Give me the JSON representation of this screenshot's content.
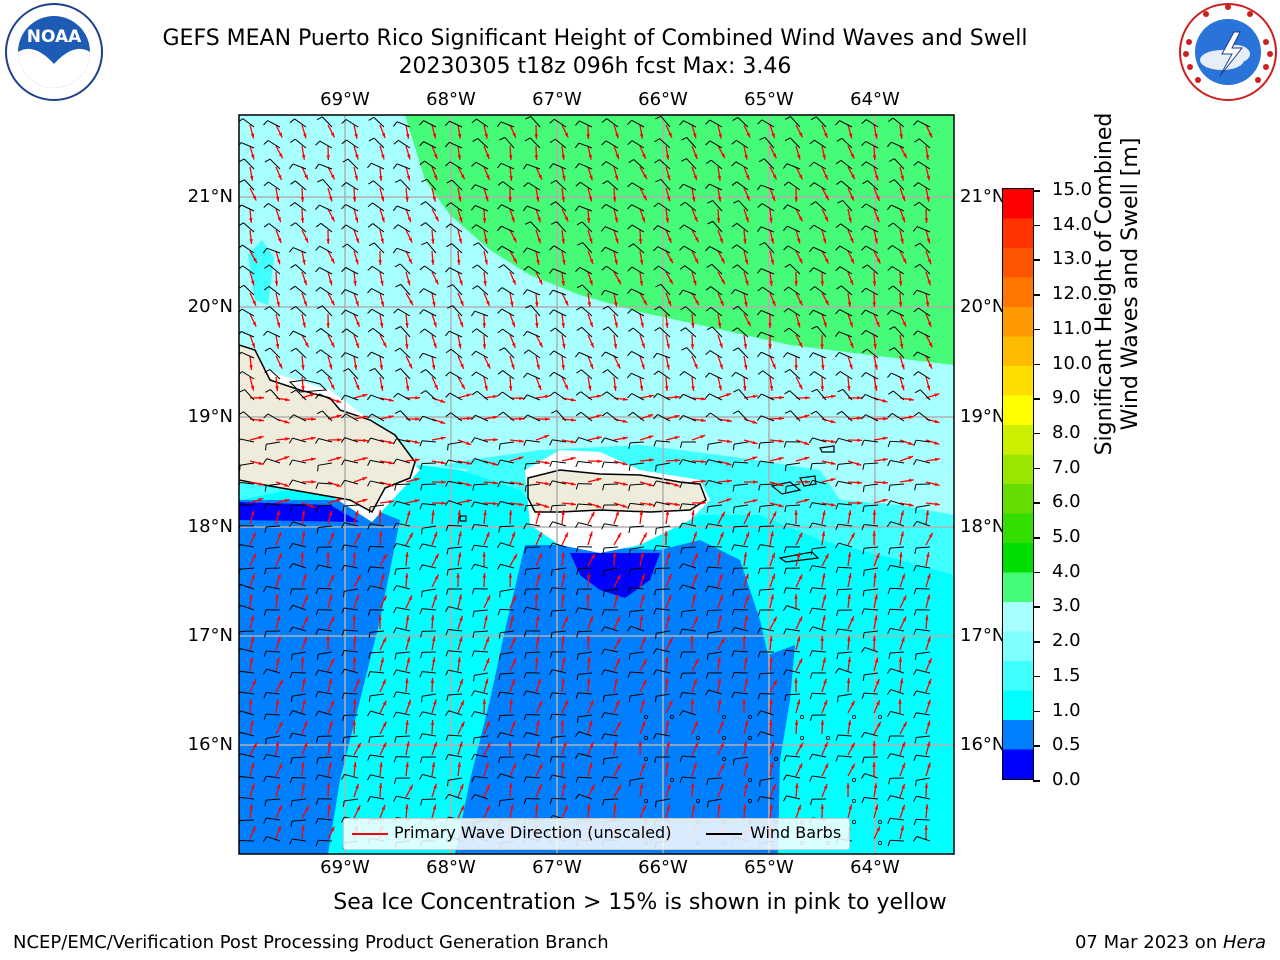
{
  "header": {
    "title_line1": "GEFS MEAN Puerto Rico Significant Height of Combined Wind Waves and Swell",
    "title_line2": "20230305 t18z 096h fcst   Max: 3.46"
  },
  "logos": {
    "left_text": "NOAA",
    "left_ring_text": "NATIONAL OCEANIC AND ATMOSPHERIC ADMINISTRATION · U.S. DEPARTMENT OF COMMERCE",
    "right_ring_text": "NATIONAL WEATHER SERVICE"
  },
  "map": {
    "lon_labels": [
      "69°W",
      "68°W",
      "67°W",
      "66°W",
      "65°W",
      "64°W"
    ],
    "lat_labels": [
      "21°N",
      "20°N",
      "19°N",
      "18°N",
      "17°N",
      "16°N"
    ],
    "legend": {
      "wave_label": "Primary Wave Direction (unscaled)",
      "barb_label": "Wind Barbs",
      "wave_color": "#ff0000",
      "barb_color": "#000000"
    },
    "land_color": "#efecdc"
  },
  "colorbar": {
    "label_line1": "Significant Height of Combined",
    "label_line2": "Wind Waves and Swell [m]",
    "ticks": [
      "15.0",
      "14.0",
      "13.0",
      "12.0",
      "11.0",
      "10.0",
      "9.0",
      "8.0",
      "7.0",
      "6.0",
      "5.0",
      "4.0",
      "3.0",
      "2.0",
      "1.5",
      "1.0",
      "0.5",
      "0.0"
    ],
    "colors": [
      "#0000ff",
      "#0080ff",
      "#00ffff",
      "#40ffff",
      "#80ffff",
      "#a8ffff",
      "#46fb78",
      "#00dd00",
      "#33dd00",
      "#66dd00",
      "#99e600",
      "#ccef00",
      "#ffff00",
      "#ffdd00",
      "#ffbb00",
      "#ff9900",
      "#ff7700",
      "#ff5500",
      "#ff3300",
      "#ff0000"
    ]
  },
  "notes": {
    "sea_ice": "Sea Ice Concentration > 15% is shown in pink to yellow"
  },
  "footer": {
    "left": "NCEP/EMC/Verification Post Processing Product Generation Branch",
    "right_prefix": "07 Mar 2023 on ",
    "right_host": "Hera"
  }
}
